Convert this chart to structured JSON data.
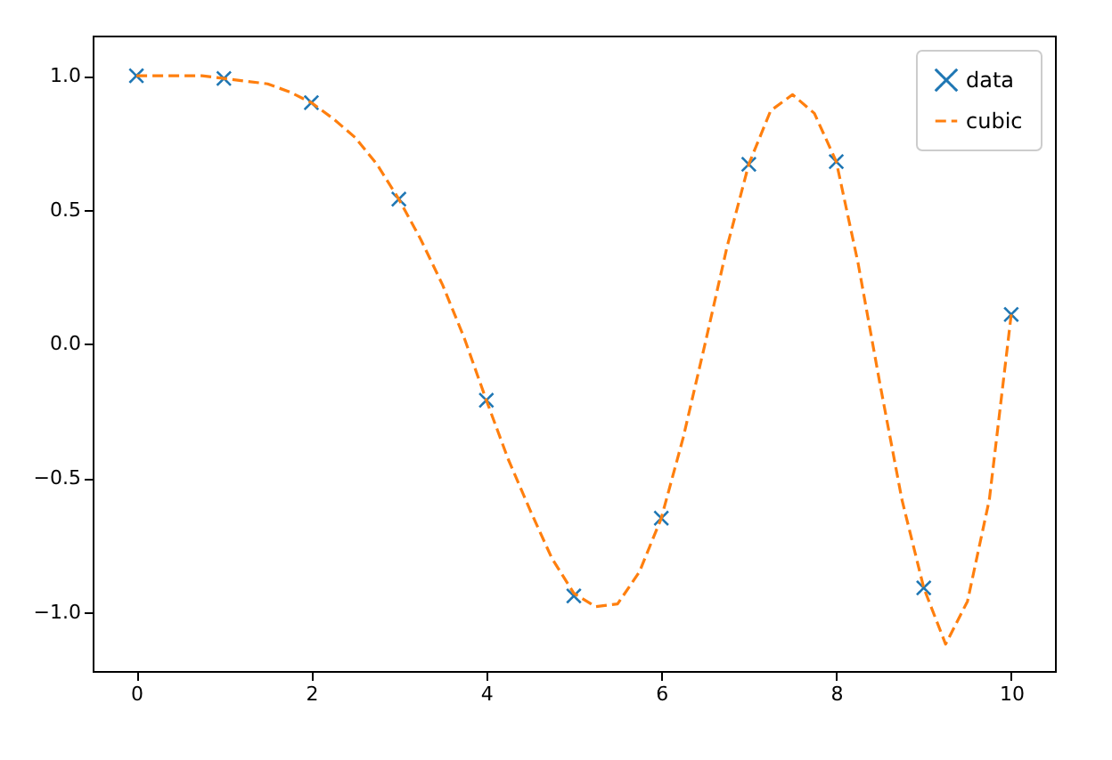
{
  "chart_data": {
    "type": "line",
    "xlim": [
      -0.5,
      10.5
    ],
    "ylim": [
      -1.22,
      1.15
    ],
    "xticks": [
      0,
      2,
      4,
      6,
      8,
      10
    ],
    "yticks": [
      {
        "value": -1,
        "label": "−1.0"
      },
      {
        "value": -0.5,
        "label": "−0.5"
      },
      {
        "value": 0,
        "label": "0.0"
      },
      {
        "value": 0.5,
        "label": "0.5"
      },
      {
        "value": 1,
        "label": "1.0"
      }
    ],
    "legend": "top right",
    "grid": false,
    "series": [
      {
        "name": "data",
        "type": "scatter",
        "marker": "cross",
        "color": "#1f77b4",
        "x": [
          0,
          1,
          2,
          3,
          4,
          5,
          6,
          7,
          8,
          9,
          10
        ],
        "values": [
          1.0,
          0.99,
          0.9,
          0.54,
          -0.21,
          -0.94,
          -0.65,
          0.67,
          0.68,
          -0.91,
          0.11
        ]
      },
      {
        "name": "cubic",
        "line_style": "dashed",
        "color": "#ff7f0e",
        "x": [
          0,
          0.25,
          0.5,
          0.75,
          1,
          1.25,
          1.5,
          1.75,
          2,
          2.25,
          2.5,
          2.75,
          3,
          3.25,
          3.5,
          3.75,
          4,
          4.25,
          4.5,
          4.75,
          5,
          5.25,
          5.5,
          5.75,
          6,
          6.25,
          6.5,
          6.75,
          7,
          7.25,
          7.5,
          7.75,
          8,
          8.25,
          8.5,
          8.75,
          9,
          9.25,
          9.5,
          9.75,
          10
        ],
        "values": [
          1.0,
          1.0,
          1.0,
          1.0,
          0.99,
          0.98,
          0.97,
          0.94,
          0.9,
          0.84,
          0.77,
          0.67,
          0.54,
          0.39,
          0.22,
          0.02,
          -0.21,
          -0.43,
          -0.62,
          -0.8,
          -0.93,
          -0.98,
          -0.97,
          -0.85,
          -0.65,
          -0.35,
          0.0,
          0.36,
          0.67,
          0.87,
          0.93,
          0.86,
          0.68,
          0.3,
          -0.15,
          -0.58,
          -0.91,
          -1.12,
          -0.96,
          -0.58,
          0.11
        ]
      }
    ]
  }
}
